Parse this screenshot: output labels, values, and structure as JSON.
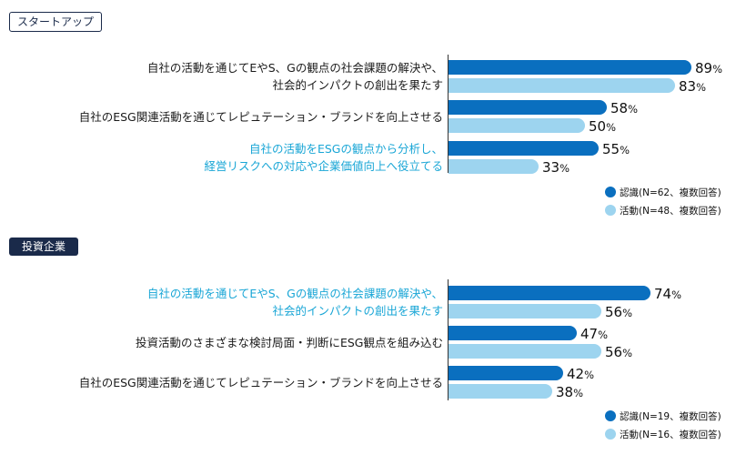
{
  "chart_data": [
    {
      "type": "bar",
      "group_label": "スタートアップ",
      "categories": [
        [
          "自社の活動を通じてEやS、Gの観点の社会課題の解決や、",
          "社会的インパクトの創出を果たす"
        ],
        [
          "自社のESG関連活動を通じてレピュテーション・ブランドを向上させる"
        ],
        [
          "自社の活動をESGの観点から分析し、",
          "経営リスクへの対応や企業価値向上へ役立てる"
        ]
      ],
      "highlighted_category": 2,
      "series": [
        {
          "name": "認識(N=62、複数回答)",
          "values": [
            89,
            58,
            55
          ],
          "color": "#0a6fbf"
        },
        {
          "name": "活動(N=48、複数回答)",
          "values": [
            83,
            50,
            33
          ],
          "color": "#9dd4ef"
        }
      ],
      "unit": "%",
      "xlim": [
        0,
        100
      ]
    },
    {
      "type": "bar",
      "group_label": "投資企業",
      "categories": [
        [
          "自社の活動を通じてEやS、Gの観点の社会課題の解決や、",
          "社会的インパクトの創出を果たす"
        ],
        [
          "投資活動のさまざまな検討局面・判断にESG観点を組み込む"
        ],
        [
          "自社のESG関連活動を通じてレピュテーション・ブランドを向上させる"
        ]
      ],
      "highlighted_category": 0,
      "series": [
        {
          "name": "認識(N=19、複数回答)",
          "values": [
            74,
            47,
            42
          ],
          "color": "#0a6fbf"
        },
        {
          "name": "活動(N=16、複数回答)",
          "values": [
            56,
            56,
            38
          ],
          "color": "#9dd4ef"
        }
      ],
      "unit": "%",
      "xlim": [
        0,
        100
      ]
    }
  ]
}
